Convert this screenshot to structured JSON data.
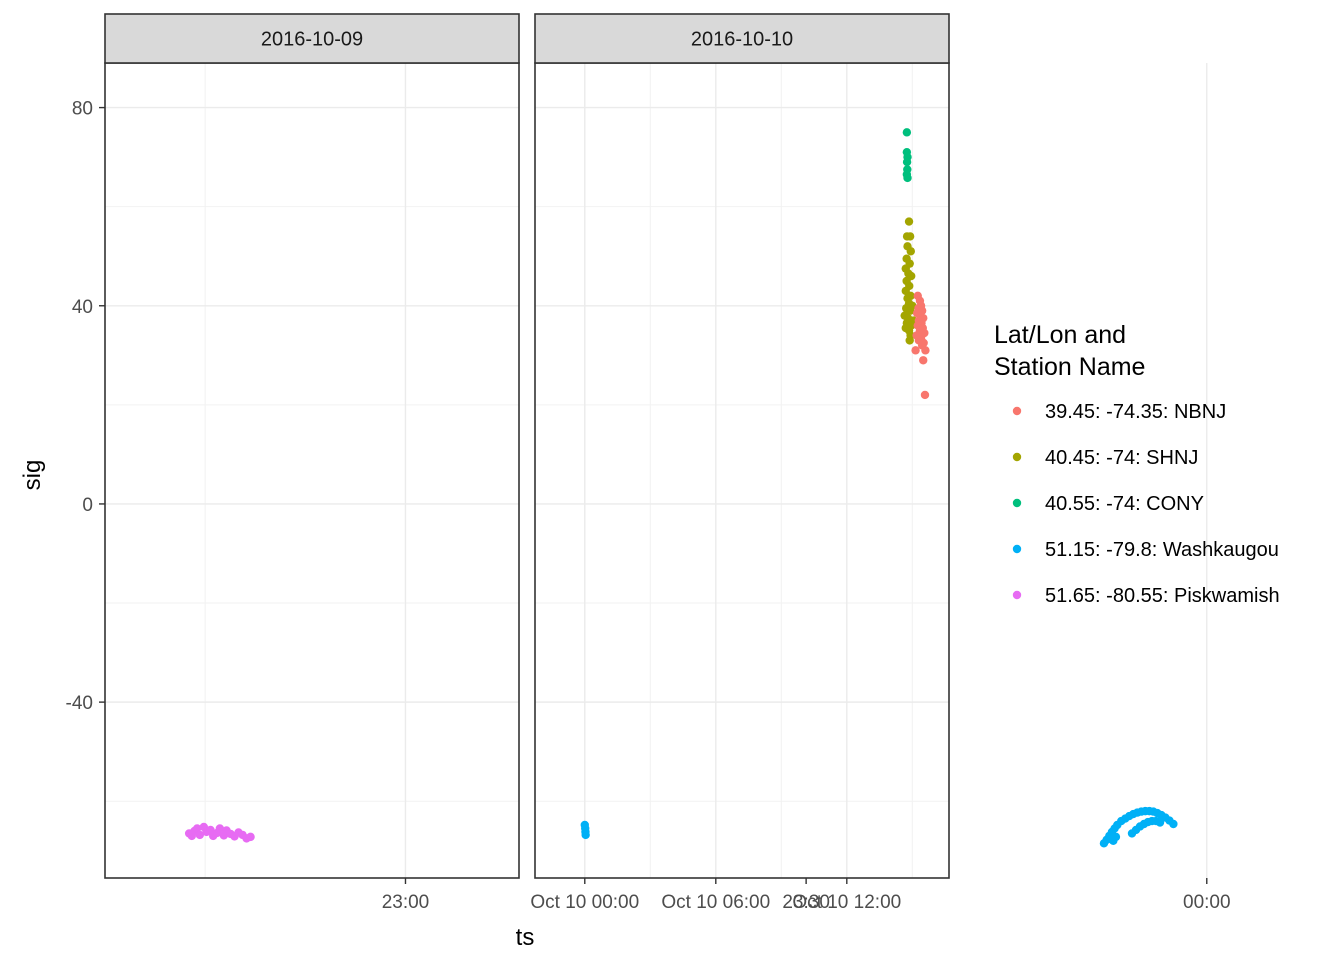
{
  "chart_data": {
    "type": "scatter",
    "facet_by": "date",
    "xlabel": "ts",
    "ylabel": "sig",
    "ylim": [
      -75.5,
      89
    ],
    "y_ticks": [
      -40,
      0,
      40,
      80
    ],
    "grid": true,
    "legend_position": "right",
    "legend": {
      "title_lines": [
        "Lat/Lon and",
        "Station Name"
      ],
      "entries": [
        {
          "label": "39.45: -74.35: NBNJ",
          "color": "#F8766D"
        },
        {
          "label": "40.45: -74: SHNJ",
          "color": "#A3A500"
        },
        {
          "label": "40.55: -74: CONY",
          "color": "#00BF7D"
        },
        {
          "label": "51.15: -79.8: Washkaugou",
          "color": "#00B0F6"
        },
        {
          "label": "51.65: -80.55: Piskwamish",
          "color": "#E76BF3"
        }
      ]
    },
    "panels": [
      {
        "strip": "2016-10-09",
        "x_unit": "minutes after 22:00, 2016-10-09",
        "xlim": [
          37.5,
          68.5
        ],
        "x_ticks": [
          {
            "value": 60,
            "label": "23:00"
          },
          {
            "value": 90,
            "label": "23:30"
          },
          {
            "value": 120,
            "label": "00:00"
          }
        ],
        "series": [
          {
            "name": "51.65: -80.55: Piskwamish",
            "points": [
              [
                43.8,
                -66.5
              ],
              [
                44.0,
                -67.0
              ],
              [
                44.2,
                -66.0
              ],
              [
                44.4,
                -65.5
              ],
              [
                44.6,
                -66.8
              ],
              [
                44.9,
                -65.2
              ],
              [
                45.1,
                -66.2
              ],
              [
                45.4,
                -65.8
              ],
              [
                45.6,
                -67.0
              ],
              [
                45.9,
                -66.4
              ],
              [
                46.1,
                -65.5
              ],
              [
                46.4,
                -66.9
              ],
              [
                46.6,
                -65.9
              ],
              [
                46.9,
                -66.6
              ],
              [
                47.2,
                -67.1
              ],
              [
                47.5,
                -66.3
              ],
              [
                47.8,
                -66.8
              ],
              [
                48.1,
                -67.5
              ],
              [
                48.4,
                -67.2
              ]
            ]
          },
          {
            "name": "51.15: -79.8: Washkaugou",
            "points": [
              [
                112.3,
                -68.5
              ],
              [
                112.5,
                -67.8
              ],
              [
                112.7,
                -67.0
              ],
              [
                112.9,
                -66.2
              ],
              [
                113.1,
                -65.5
              ],
              [
                113.3,
                -64.8
              ],
              [
                113.6,
                -64.0
              ],
              [
                113.9,
                -63.5
              ],
              [
                114.2,
                -63.0
              ],
              [
                114.5,
                -62.6
              ],
              [
                114.8,
                -62.3
              ],
              [
                115.1,
                -62.1
              ],
              [
                115.4,
                -62.0
              ],
              [
                115.7,
                -62.0
              ],
              [
                116.0,
                -62.1
              ],
              [
                116.3,
                -62.4
              ],
              [
                116.6,
                -62.8
              ],
              [
                116.9,
                -63.3
              ],
              [
                117.2,
                -63.9
              ],
              [
                117.5,
                -64.6
              ],
              [
                114.4,
                -66.5
              ],
              [
                114.7,
                -65.8
              ],
              [
                115.0,
                -65.1
              ],
              [
                115.3,
                -64.6
              ],
              [
                115.6,
                -64.2
              ],
              [
                115.9,
                -64.0
              ],
              [
                116.2,
                -64.0
              ],
              [
                116.5,
                -64.3
              ],
              [
                113.0,
                -68.0
              ],
              [
                113.2,
                -67.2
              ]
            ]
          }
        ]
      },
      {
        "strip": "2016-10-10",
        "x_unit": "hours after 00:00, 2016-10-10",
        "xlim": [
          -2.28,
          16.68
        ],
        "x_ticks": [
          {
            "value": 0,
            "label": "Oct 10 00:00"
          },
          {
            "value": 6,
            "label": "Oct 10 06:00"
          },
          {
            "value": 12,
            "label": "Oct 10 12:00"
          }
        ],
        "series": [
          {
            "name": "51.15: -79.8: Washkaugou",
            "points": [
              [
                0.0,
                -64.8
              ],
              [
                0.02,
                -65.5
              ],
              [
                0.03,
                -66.2
              ],
              [
                0.04,
                -66.8
              ]
            ]
          },
          {
            "name": "40.55: -74: CONY",
            "points": [
              [
                14.75,
                75.0
              ],
              [
                14.75,
                71.0
              ],
              [
                14.78,
                70.0
              ],
              [
                14.76,
                69.0
              ],
              [
                14.77,
                67.5
              ],
              [
                14.75,
                66.5
              ],
              [
                14.78,
                65.8
              ]
            ]
          },
          {
            "name": "40.45: -74: SHNJ",
            "points": [
              [
                14.85,
                57.0
              ],
              [
                14.76,
                54.0
              ],
              [
                14.9,
                54.0
              ],
              [
                14.78,
                52.0
              ],
              [
                14.93,
                51.0
              ],
              [
                14.74,
                49.5
              ],
              [
                14.88,
                48.5
              ],
              [
                14.7,
                47.5
              ],
              [
                14.82,
                46.5
              ],
              [
                14.95,
                46.0
              ],
              [
                14.74,
                45.0
              ],
              [
                14.86,
                44.0
              ],
              [
                14.7,
                43.0
              ],
              [
                14.92,
                42.0
              ],
              [
                14.78,
                41.5
              ],
              [
                14.85,
                40.5
              ],
              [
                15.0,
                40.0
              ],
              [
                14.72,
                39.5
              ],
              [
                14.9,
                39.0
              ],
              [
                14.65,
                38.0
              ],
              [
                14.8,
                37.5
              ],
              [
                15.05,
                37.0
              ],
              [
                14.75,
                36.5
              ],
              [
                14.95,
                36.0
              ],
              [
                14.7,
                35.5
              ],
              [
                14.85,
                35.0
              ],
              [
                14.92,
                34.0
              ],
              [
                14.88,
                33.0
              ]
            ]
          },
          {
            "name": "39.45: -74.35: NBNJ",
            "points": [
              [
                15.25,
                42.0
              ],
              [
                15.35,
                41.0
              ],
              [
                15.4,
                40.0
              ],
              [
                15.28,
                39.5
              ],
              [
                15.45,
                39.0
              ],
              [
                15.22,
                38.5
              ],
              [
                15.38,
                38.0
              ],
              [
                15.5,
                37.5
              ],
              [
                15.3,
                37.0
              ],
              [
                15.42,
                36.5
              ],
              [
                15.25,
                36.0
              ],
              [
                15.48,
                35.5
              ],
              [
                15.35,
                35.0
              ],
              [
                15.55,
                34.5
              ],
              [
                15.2,
                34.0
              ],
              [
                15.4,
                33.5
              ],
              [
                15.3,
                33.0
              ],
              [
                15.52,
                32.5
              ],
              [
                15.45,
                32.0
              ],
              [
                15.15,
                31.0
              ],
              [
                15.6,
                31.0
              ],
              [
                15.5,
                29.0
              ],
              [
                15.58,
                22.0
              ]
            ]
          }
        ]
      }
    ]
  }
}
